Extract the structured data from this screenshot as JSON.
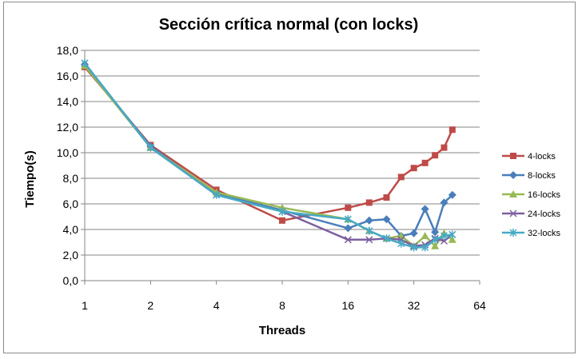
{
  "chart_data": {
    "type": "line",
    "title": "Sección crítica normal (con locks)",
    "xlabel": "Threads",
    "ylabel": "Tiempo(s)",
    "x_scale": "log2",
    "xlim": [
      1,
      64
    ],
    "ylim": [
      0,
      18
    ],
    "x_ticks": [
      "1",
      "2",
      "4",
      "8",
      "16",
      "32",
      "64"
    ],
    "y_ticks": [
      "0,0",
      "2,0",
      "4,0",
      "6,0",
      "8,0",
      "10,0",
      "12,0",
      "14,0",
      "16,0",
      "18,0"
    ],
    "grid": "horizontal",
    "legend_position": "right",
    "series": [
      {
        "name": "4-locks",
        "color": "#be4b48",
        "marker": "square",
        "x": [
          1,
          2,
          4,
          8,
          16,
          20,
          24,
          28,
          32,
          36,
          40,
          44,
          48
        ],
        "y": [
          16.7,
          10.6,
          7.1,
          4.7,
          5.7,
          6.1,
          6.5,
          8.1,
          8.8,
          9.2,
          9.8,
          10.4,
          11.8
        ]
      },
      {
        "name": "8-locks",
        "color": "#4a7ebb",
        "marker": "diamond",
        "x": [
          1,
          2,
          4,
          8,
          16,
          20,
          24,
          28,
          32,
          36,
          40,
          44,
          48
        ],
        "y": [
          16.9,
          10.5,
          6.8,
          5.5,
          4.1,
          4.7,
          4.8,
          3.5,
          3.7,
          5.6,
          3.8,
          6.1,
          6.7
        ]
      },
      {
        "name": "16-locks",
        "color": "#98b954",
        "marker": "triangle",
        "x": [
          1,
          2,
          4,
          8,
          16,
          20,
          24,
          28,
          32,
          36,
          40,
          44,
          48
        ],
        "y": [
          16.8,
          10.4,
          6.9,
          5.7,
          4.8,
          3.9,
          3.3,
          3.5,
          2.7,
          3.5,
          2.7,
          3.7,
          3.2
        ]
      },
      {
        "name": "24-locks",
        "color": "#7d60a0",
        "marker": "x",
        "x": [
          1,
          2,
          4,
          8,
          16,
          20,
          24,
          28,
          32,
          36,
          40,
          44,
          48
        ],
        "y": [
          17.0,
          10.4,
          6.7,
          5.4,
          3.2,
          3.2,
          3.3,
          3.2,
          2.7,
          2.8,
          3.3,
          3.1,
          3.6
        ]
      },
      {
        "name": "32-locks",
        "color": "#46aac5",
        "marker": "star",
        "x": [
          1,
          2,
          4,
          8,
          16,
          20,
          24,
          28,
          32,
          36,
          40,
          44,
          48
        ],
        "y": [
          17.0,
          10.4,
          6.7,
          5.4,
          4.8,
          3.9,
          3.3,
          2.9,
          2.6,
          2.6,
          3.2,
          3.5,
          3.6
        ]
      }
    ]
  }
}
